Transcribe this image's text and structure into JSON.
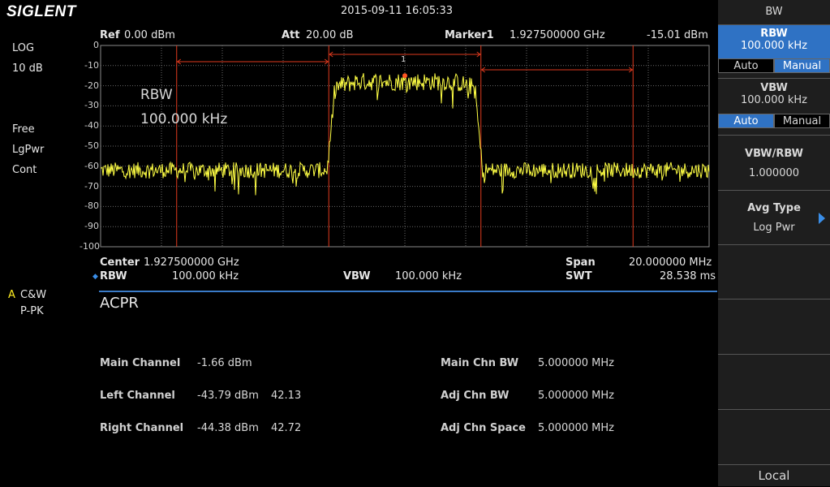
{
  "header": {
    "brand": "SIGLENT",
    "datetime": "2015-09-11   16:05:33"
  },
  "left_status": {
    "scale_type": "LOG",
    "scale_div": "10 dB",
    "trigger": "Free",
    "detector_avg": "LgPwr",
    "sweep_mode": "Cont",
    "trace_letter": "A",
    "trace_mode": "C&W",
    "trace_detector": "P-PK"
  },
  "top_info": {
    "ref_label": "Ref",
    "ref_value": "0.00 dBm",
    "att_label": "Att",
    "att_value": "20.00 dB",
    "marker_label": "Marker1",
    "marker_freq": "1.927500000  GHz",
    "marker_level": "-15.01 dBm"
  },
  "overlay": {
    "line1": "RBW",
    "line2": "100.000  kHz"
  },
  "marker_number": "1",
  "y_axis": {
    "ticks": [
      "0",
      "-10",
      "-20",
      "-30",
      "-40",
      "-50",
      "-60",
      "-70",
      "-80",
      "-90",
      "-100"
    ]
  },
  "bottom_info": {
    "center_label": "Center",
    "center_value": "1.927500000  GHz",
    "span_label": "Span",
    "span_value": "20.000000  MHz",
    "rbw_label": "RBW",
    "rbw_value": "100.000  kHz",
    "vbw_label": "VBW",
    "vbw_value": "100.000  kHz",
    "swt_label": "SWT",
    "swt_value": "28.538 ms"
  },
  "acpr": {
    "title": "ACPR",
    "main_label": "Main Channel",
    "main_value": "-1.66 dBm",
    "left_label": "Left Channel",
    "left_value": "-43.79 dBm",
    "left_ratio": "42.13",
    "right_label": "Right Channel",
    "right_value": "-44.38 dBm",
    "right_ratio": "42.72",
    "main_bw_label": "Main Chn BW",
    "main_bw_value": "5.000000  MHz",
    "adj_bw_label": "Adj Chn BW",
    "adj_bw_value": "5.000000  MHz",
    "adj_space_label": "Adj Chn Space",
    "adj_space_value": "5.000000  MHz"
  },
  "softkeys": {
    "menu_title": "BW",
    "rbw_title": "RBW",
    "rbw_value": "100.000  kHz",
    "rbw_auto": "Auto",
    "rbw_manual": "Manual",
    "vbw_title": "VBW",
    "vbw_value": "100.000  kHz",
    "vbw_auto": "Auto",
    "vbw_manual": "Manual",
    "ratio_title": "VBW/RBW",
    "ratio_value": "1.000000",
    "avg_title": "Avg Type",
    "avg_value": "Log Pwr",
    "local": "Local"
  },
  "colors": {
    "trace": "#ffff44",
    "grid": "#6a6a6a",
    "channel_lines": "#e03a1e",
    "accent": "#2f72c4"
  },
  "chart_data": {
    "type": "line",
    "ylim": [
      -100,
      0
    ],
    "y_unit": "dBm",
    "x_center_ghz": 1.9275,
    "x_span_mhz": 20,
    "marker": {
      "freq_ghz": 1.9275,
      "level_dbm": -15.01
    },
    "series": [
      {
        "values_note_free": true,
        "noise_floor_dbm": -62,
        "main_channel_level_dbm": -17
      }
    ]
  }
}
